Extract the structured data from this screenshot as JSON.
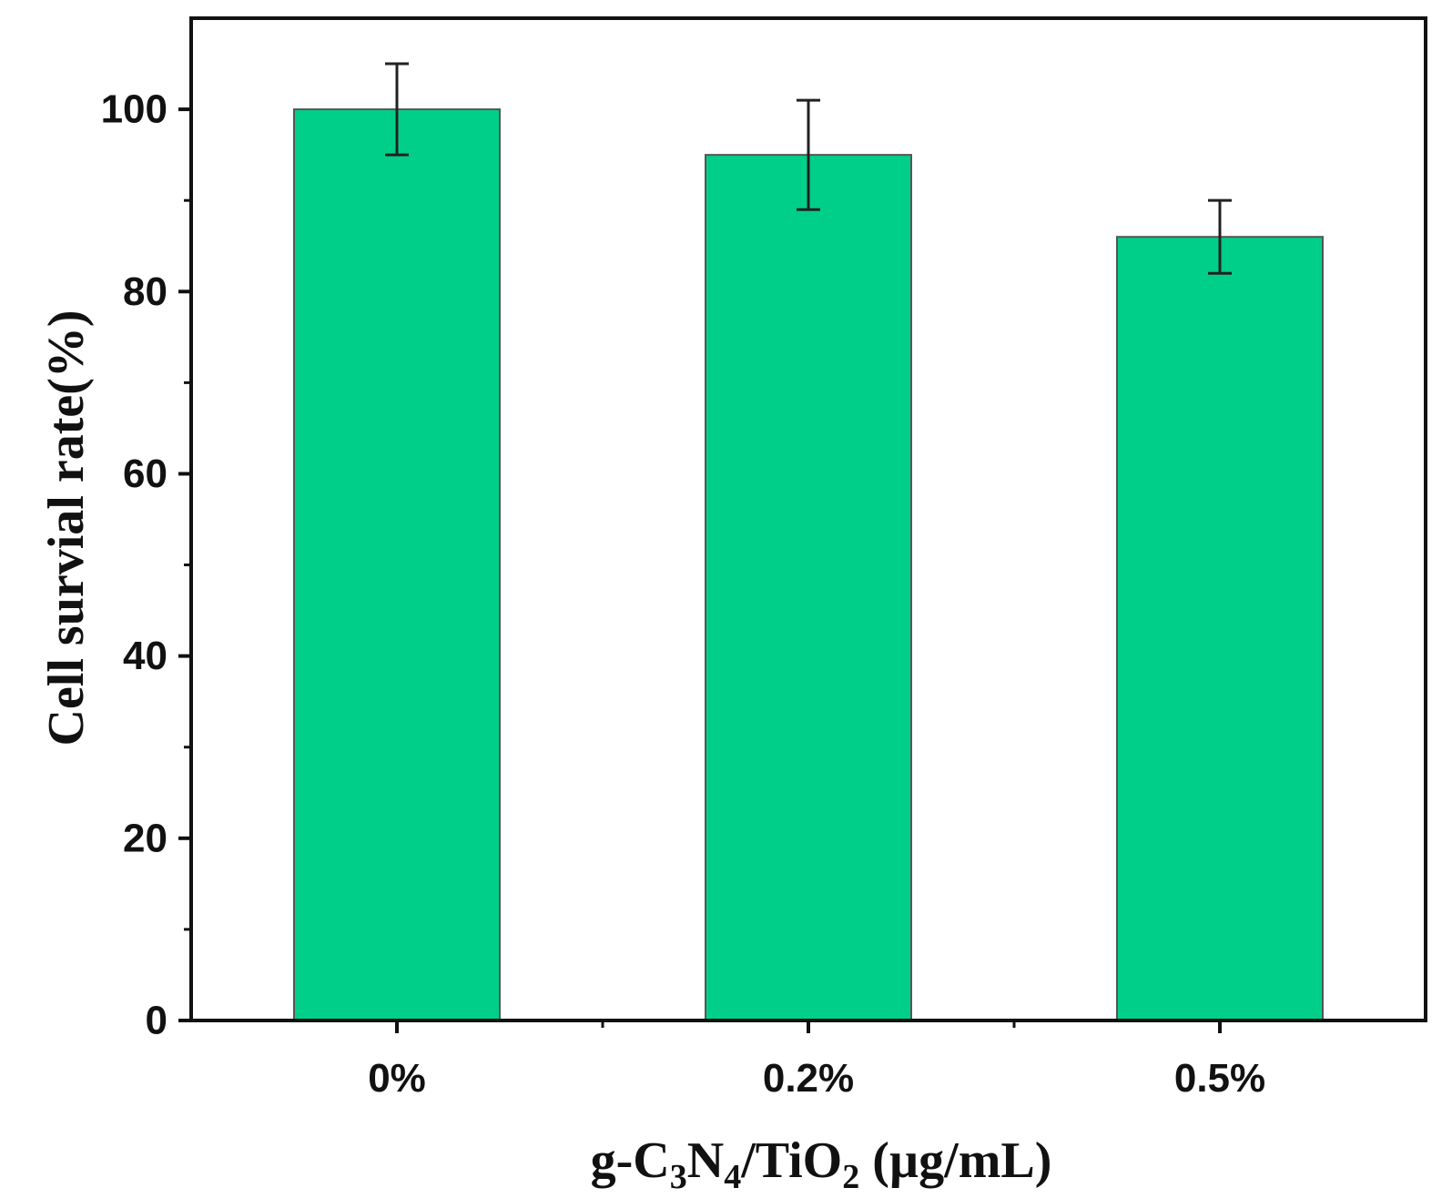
{
  "chart_data": {
    "type": "bar",
    "categories": [
      "0%",
      "0.2%",
      "0.5%"
    ],
    "values": [
      100,
      95,
      86
    ],
    "errors": [
      5,
      6,
      4
    ],
    "bar_color": "#00cf8a",
    "ylim": [
      0,
      110
    ],
    "yticks": [
      "0",
      "20",
      "40",
      "60",
      "80",
      "100"
    ],
    "ylabel": "Cell survial rate(%)",
    "xlabel": {
      "prefix": "g-C",
      "sub1": "3",
      "mid1": "N",
      "sub2": "4",
      "mid2": "/TiO",
      "sub3": "2",
      "suffix": " (µg/mL)"
    }
  }
}
